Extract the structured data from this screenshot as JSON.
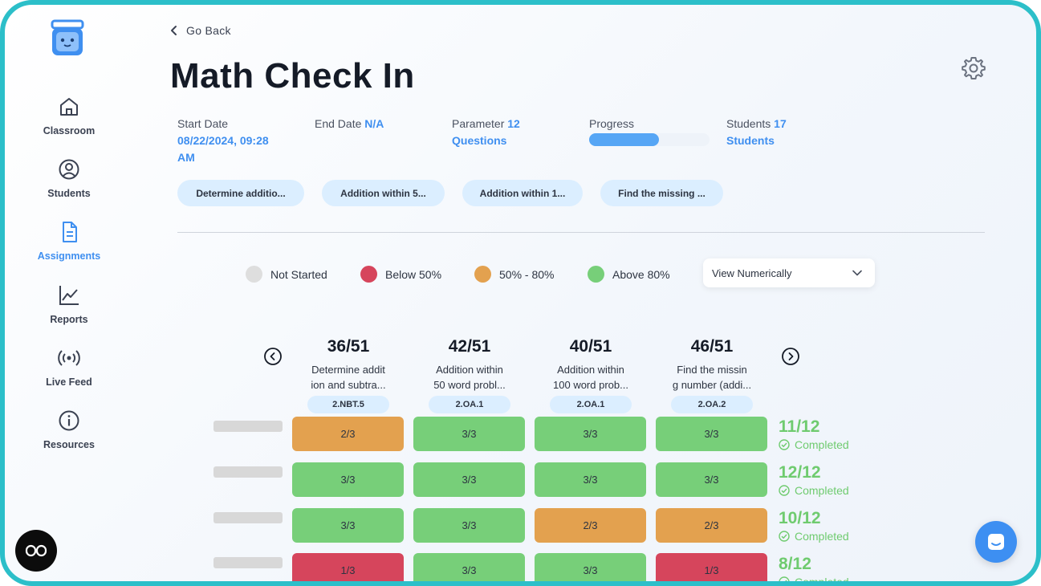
{
  "sidebar": {
    "items": [
      {
        "label": "Classroom",
        "icon": "home-icon",
        "active": false
      },
      {
        "label": "Students",
        "icon": "user-circle-icon",
        "active": false
      },
      {
        "label": "Assignments",
        "icon": "document-icon",
        "active": true
      },
      {
        "label": "Reports",
        "icon": "line-chart-icon",
        "active": false
      },
      {
        "label": "Live Feed",
        "icon": "broadcast-icon",
        "active": false
      },
      {
        "label": "Resources",
        "icon": "info-icon",
        "active": false
      }
    ]
  },
  "header": {
    "back_label": "Go Back",
    "title": "Math Check In"
  },
  "meta": {
    "start_label": "Start Date",
    "start_value_line1": "08/22/2024, 09:28",
    "start_value_line2": "AM",
    "end_label": "End Date",
    "end_value": "N/A",
    "parameter_label": "Parameter",
    "parameter_count": "12",
    "parameter_unit": "Questions",
    "progress_label": "Progress",
    "progress_fraction": 0.58,
    "students_label": "Students",
    "students_count": "17",
    "students_unit": "Students"
  },
  "chips": [
    "Determine additio...",
    "Addition within 5...",
    "Addition within 1...",
    "Find the missing ..."
  ],
  "legend": {
    "not_started": "Not Started",
    "below_50": "Below 50%",
    "mid": "50% - 80%",
    "above_80": "Above 80%"
  },
  "view_select": {
    "value": "View Numerically"
  },
  "colors": {
    "accent": "#3f8ff0",
    "not_started": "#dedede",
    "below_50": "#d6455c",
    "mid": "#e3a14f",
    "above_80": "#77cf79",
    "completed_text": "#6fcb6f"
  },
  "columns": [
    {
      "score": "36/51",
      "line1": "Determine addit",
      "line2": "ion and subtra...",
      "standard": "2.NBT.5"
    },
    {
      "score": "42/51",
      "line1": "Addition within",
      "line2": "50 word probl...",
      "standard": "2.OA.1"
    },
    {
      "score": "40/51",
      "line1": "Addition within",
      "line2": "100 word prob...",
      "standard": "2.OA.1"
    },
    {
      "score": "46/51",
      "line1": "Find the missin",
      "line2": "g number (addi...",
      "standard": "2.OA.2"
    }
  ],
  "rows": [
    {
      "cells": [
        "2/3",
        "3/3",
        "3/3",
        "3/3"
      ],
      "total": "11/12",
      "status": "Completed"
    },
    {
      "cells": [
        "3/3",
        "3/3",
        "3/3",
        "3/3"
      ],
      "total": "12/12",
      "status": "Completed"
    },
    {
      "cells": [
        "3/3",
        "3/3",
        "2/3",
        "2/3"
      ],
      "total": "10/12",
      "status": "Completed"
    },
    {
      "cells": [
        "1/3",
        "3/3",
        "3/3",
        "1/3"
      ],
      "total": "8/12",
      "status": "Completed"
    }
  ]
}
